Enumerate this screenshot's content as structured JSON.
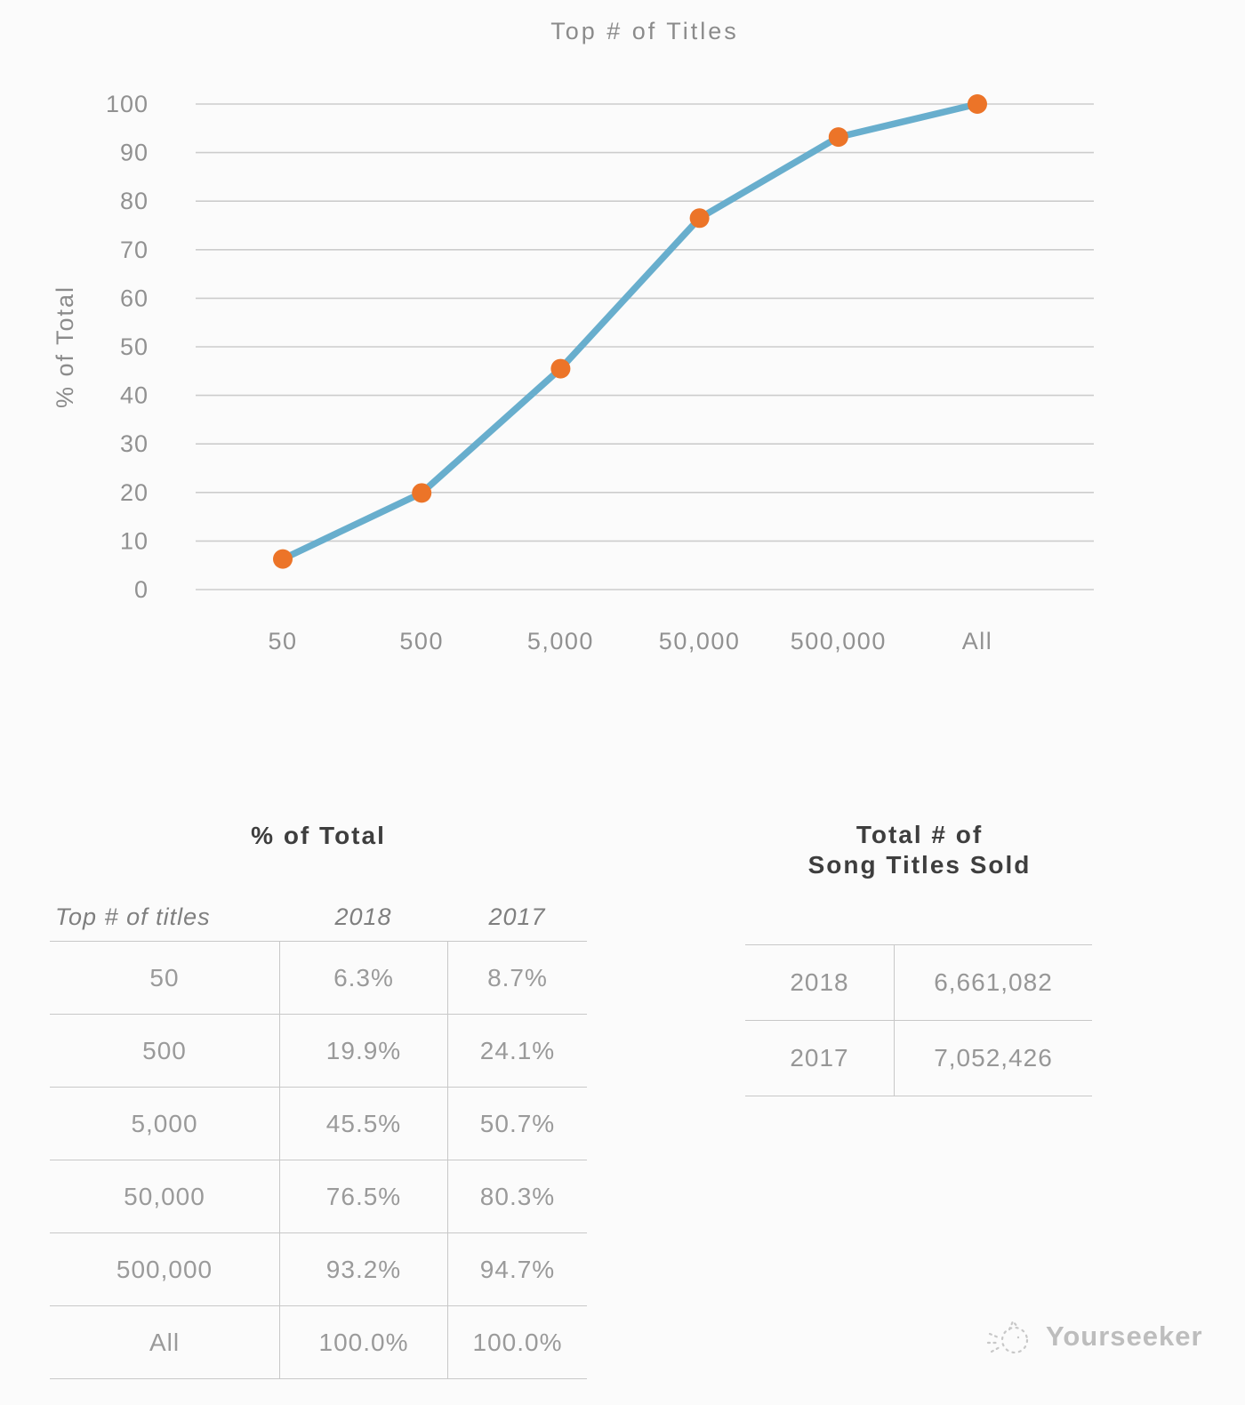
{
  "chart_data": {
    "type": "line",
    "title": "Top # of Titles",
    "xlabel": "",
    "ylabel": "% of Total",
    "categories": [
      "50",
      "500",
      "5,000",
      "50,000",
      "500,000",
      "All"
    ],
    "series": [
      {
        "name": "2018",
        "values": [
          6.3,
          19.9,
          45.5,
          76.5,
          93.2,
          100.0
        ]
      }
    ],
    "ylim": [
      0,
      100
    ],
    "yticks": [
      0,
      10,
      20,
      30,
      40,
      50,
      60,
      70,
      80,
      90,
      100
    ],
    "grid": true,
    "legend": false,
    "line_color": "#68aecd",
    "marker_color": "#ec7428",
    "gridline_color": "#cccccc",
    "label_color": "#919191"
  },
  "percent_table": {
    "title": "% of Total",
    "columns": [
      "Top # of titles",
      "2018",
      "2017"
    ],
    "rows": [
      [
        "50",
        "6.3%",
        "8.7%"
      ],
      [
        "500",
        "19.9%",
        "24.1%"
      ],
      [
        "5,000",
        "45.5%",
        "50.7%"
      ],
      [
        "50,000",
        "76.5%",
        "80.3%"
      ],
      [
        "500,000",
        "93.2%",
        "94.7%"
      ],
      [
        "All",
        "100.0%",
        "100.0%"
      ]
    ]
  },
  "totals_table": {
    "title_line1": "Total # of",
    "title_line2": "Song Titles Sold",
    "rows": [
      [
        "2018",
        "6,661,082"
      ],
      [
        "2017",
        "7,052,426"
      ]
    ]
  },
  "watermark": {
    "label": "Yourseeker"
  }
}
